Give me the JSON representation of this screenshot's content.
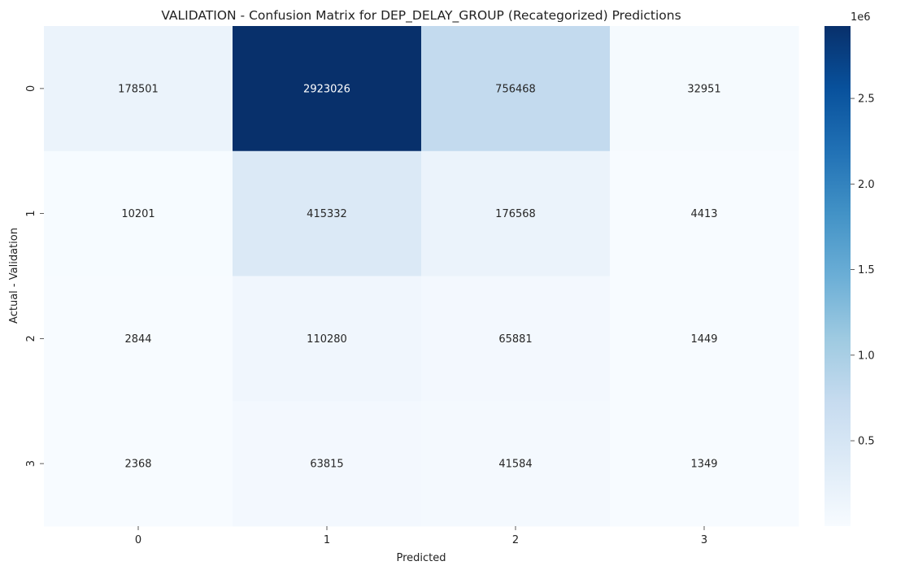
{
  "chart_data": {
    "type": "heatmap",
    "title": "VALIDATION - Confusion Matrix for DEP_DELAY_GROUP (Recategorized) Predictions",
    "xlabel": "Predicted",
    "ylabel": "Actual - Validation",
    "x_categories": [
      "0",
      "1",
      "2",
      "3"
    ],
    "y_categories": [
      "0",
      "1",
      "2",
      "3"
    ],
    "values": [
      [
        178501,
        2923026,
        756468,
        32951
      ],
      [
        10201,
        415332,
        176568,
        4413
      ],
      [
        2844,
        110280,
        65881,
        1449
      ],
      [
        2368,
        63815,
        41584,
        1349
      ]
    ],
    "colormap": "Blues",
    "colorbar": {
      "ticks": [
        0.5,
        1.0,
        1.5,
        2.0,
        2.5
      ],
      "tick_labels": [
        "0.5",
        "1.0",
        "1.5",
        "2.0",
        "2.5"
      ],
      "multiplier_label": "1e6",
      "range": [
        1349,
        2923026
      ]
    },
    "grid": false,
    "legend": "none"
  }
}
